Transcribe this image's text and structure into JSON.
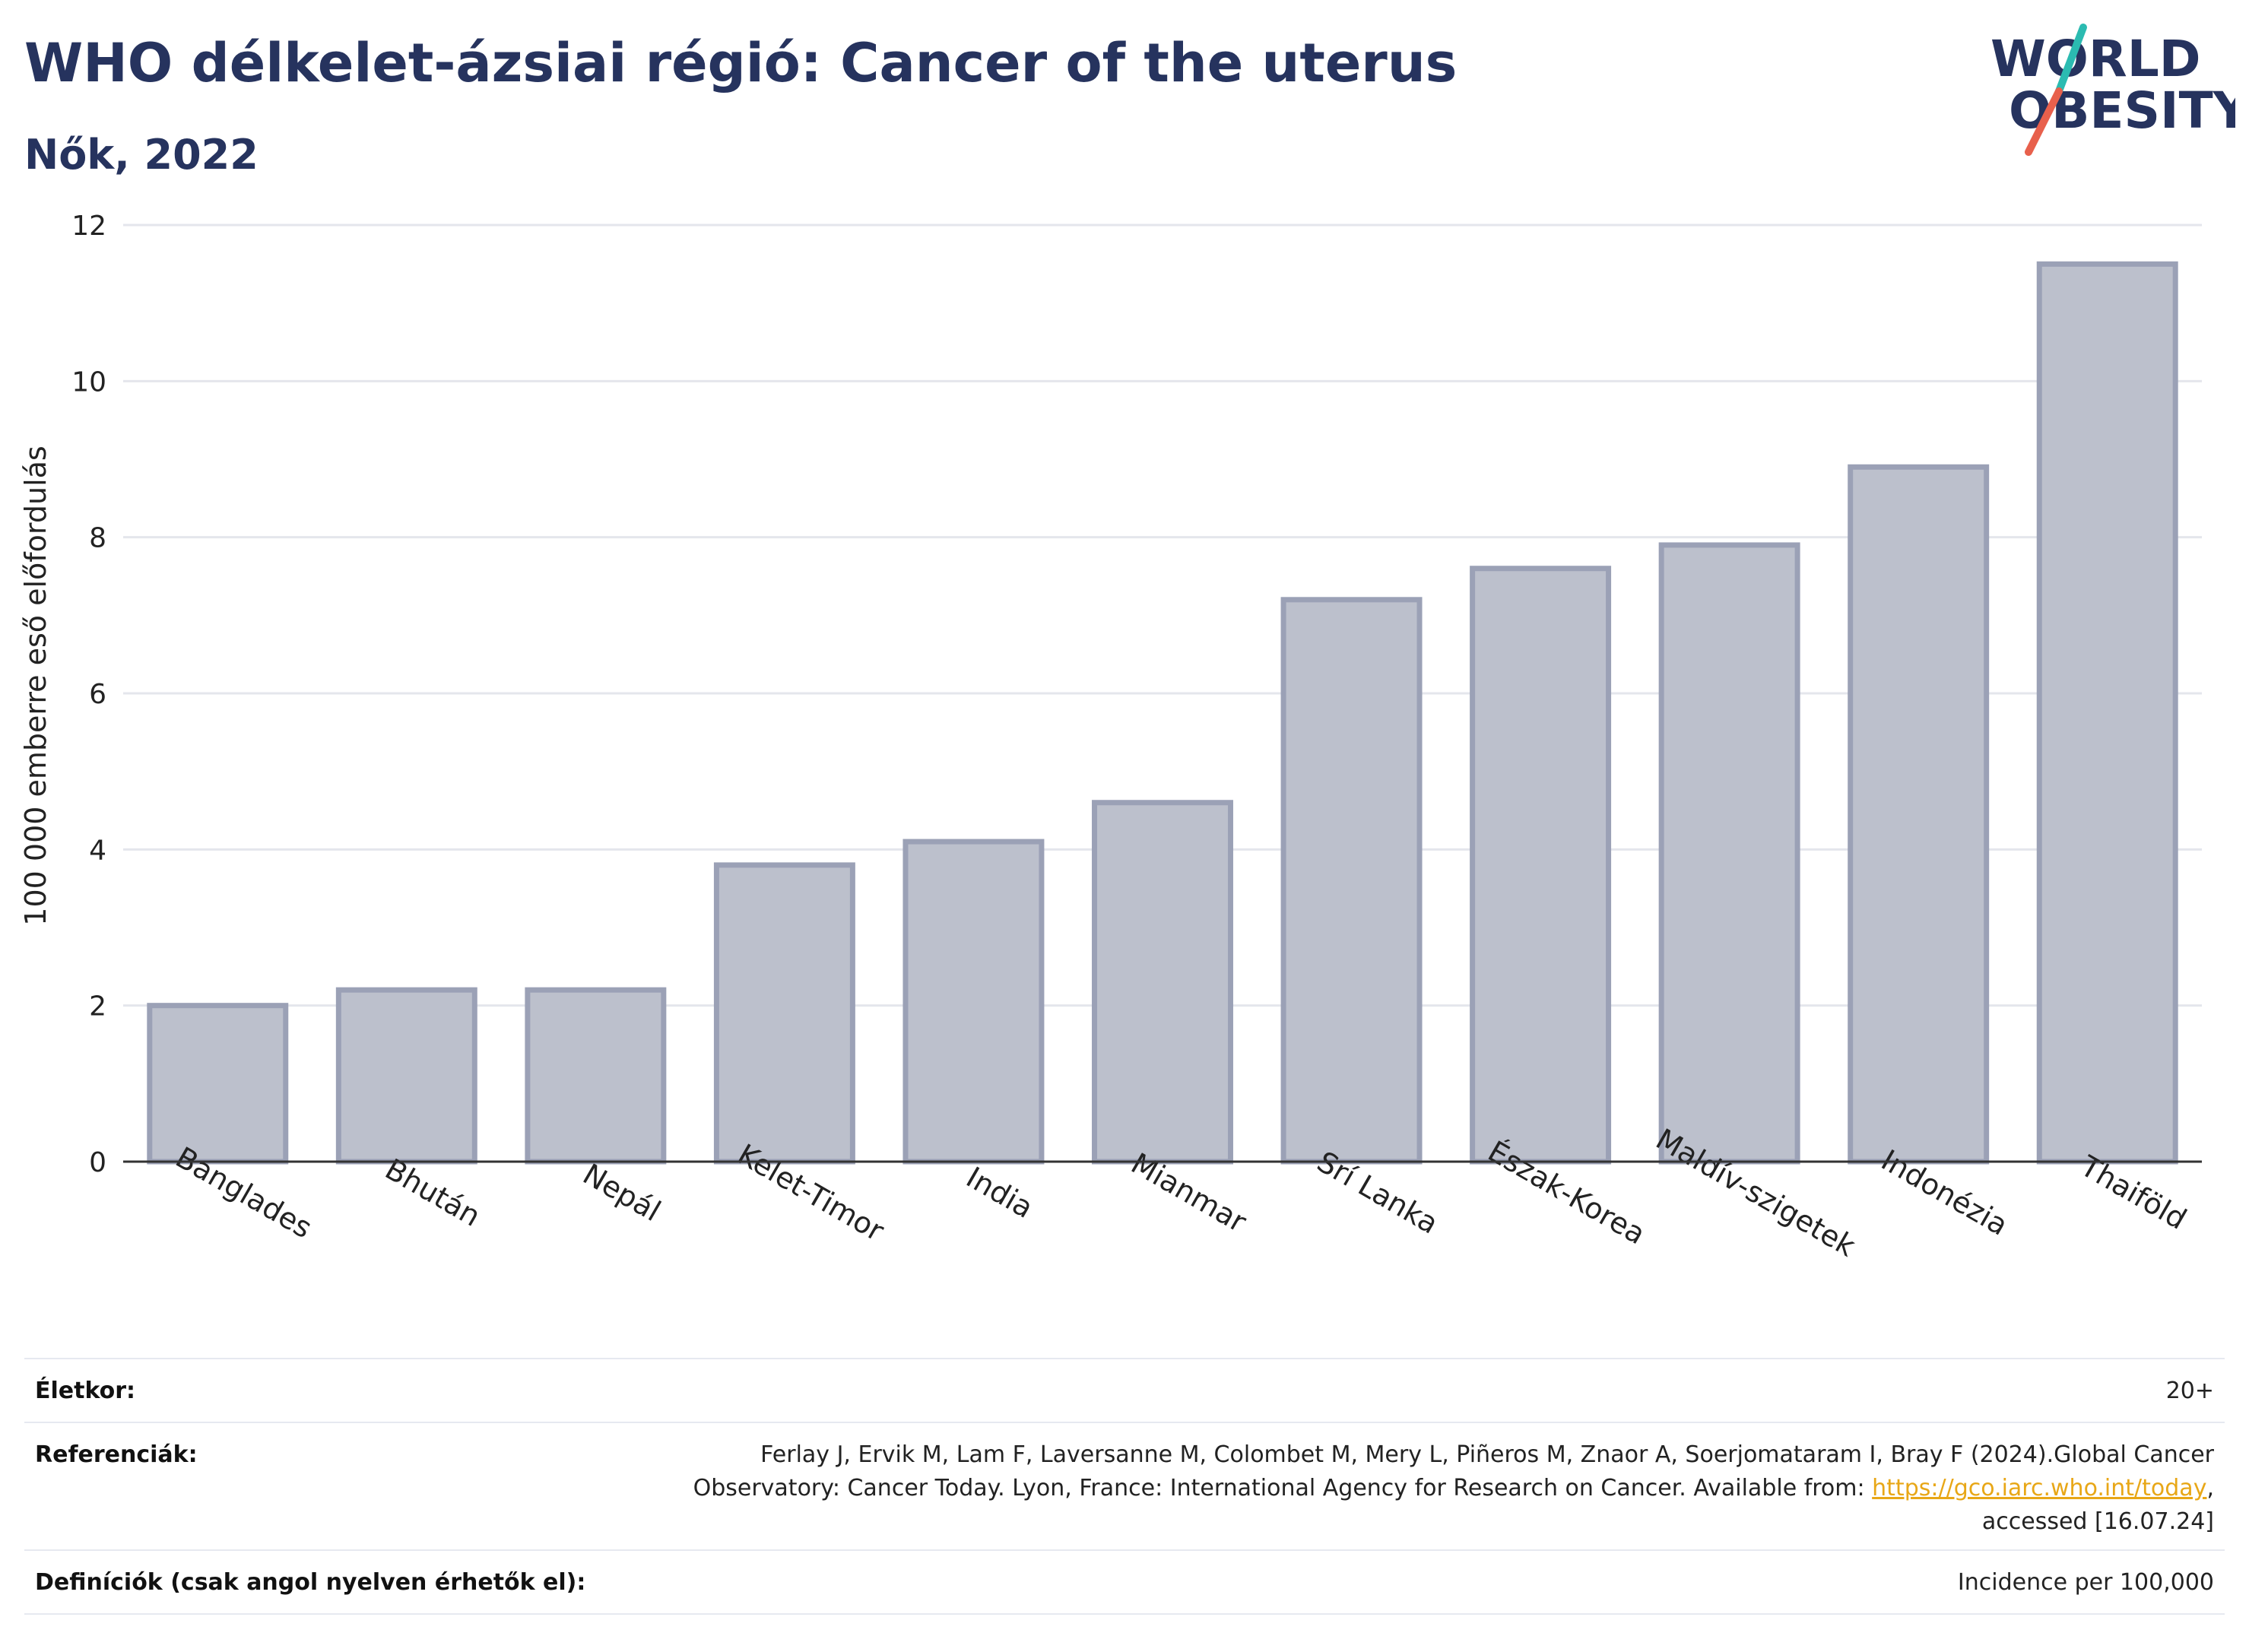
{
  "title": "WHO délkelet-ázsiai régió: Cancer of the uterus",
  "subtitle": "Nők, 2022",
  "logo": {
    "line1": "WORLD",
    "line2": "OBESITY",
    "colors": {
      "text": "#26335e",
      "slash_top": "#2bbbb1",
      "slash_bottom": "#e8604c"
    }
  },
  "chart_data": {
    "type": "bar",
    "title": "",
    "xlabel": "",
    "ylabel": "100 000 emberre eső előfordulás",
    "ylim": [
      0,
      12
    ],
    "yticks": [
      0,
      2,
      4,
      6,
      8,
      10,
      12
    ],
    "grid": true,
    "categories": [
      "Banglades",
      "Bhután",
      "Nepál",
      "Kelet-Timor",
      "India",
      "Mianmar",
      "Srí Lanka",
      "Észak-Korea",
      "Maldív-szigetek",
      "Indonézia",
      "Thaiföld"
    ],
    "values": [
      2.0,
      2.2,
      2.2,
      3.8,
      4.1,
      4.6,
      7.2,
      7.6,
      7.9,
      8.9,
      11.5
    ],
    "colors": {
      "bar_fill": "#bcc0cc",
      "bar_stroke": "#9ba1b6",
      "axis": "#333333",
      "grid": "#e4e6ec"
    }
  },
  "info": {
    "age_label": "Életkor:",
    "age_value": "20+",
    "refs_label": "Referenciák:",
    "refs_line1": "Ferlay J, Ervik M, Lam F, Laversanne M, Colombet M, Mery L, Piñeros M, Znaor A, Soerjomataram I, Bray F (2024).Global Cancer",
    "refs_line2_prefix": "Observatory: Cancer Today. Lyon, France: International Agency for Research on Cancer. Available from: ",
    "refs_link": "https://gco.iarc.who.int/today",
    "refs_line2_suffix": ",",
    "refs_line3": "accessed [16.07.24]",
    "defs_label": "Definíciók (csak angol nyelven érhetők el):",
    "defs_value": "Incidence per 100,000"
  }
}
